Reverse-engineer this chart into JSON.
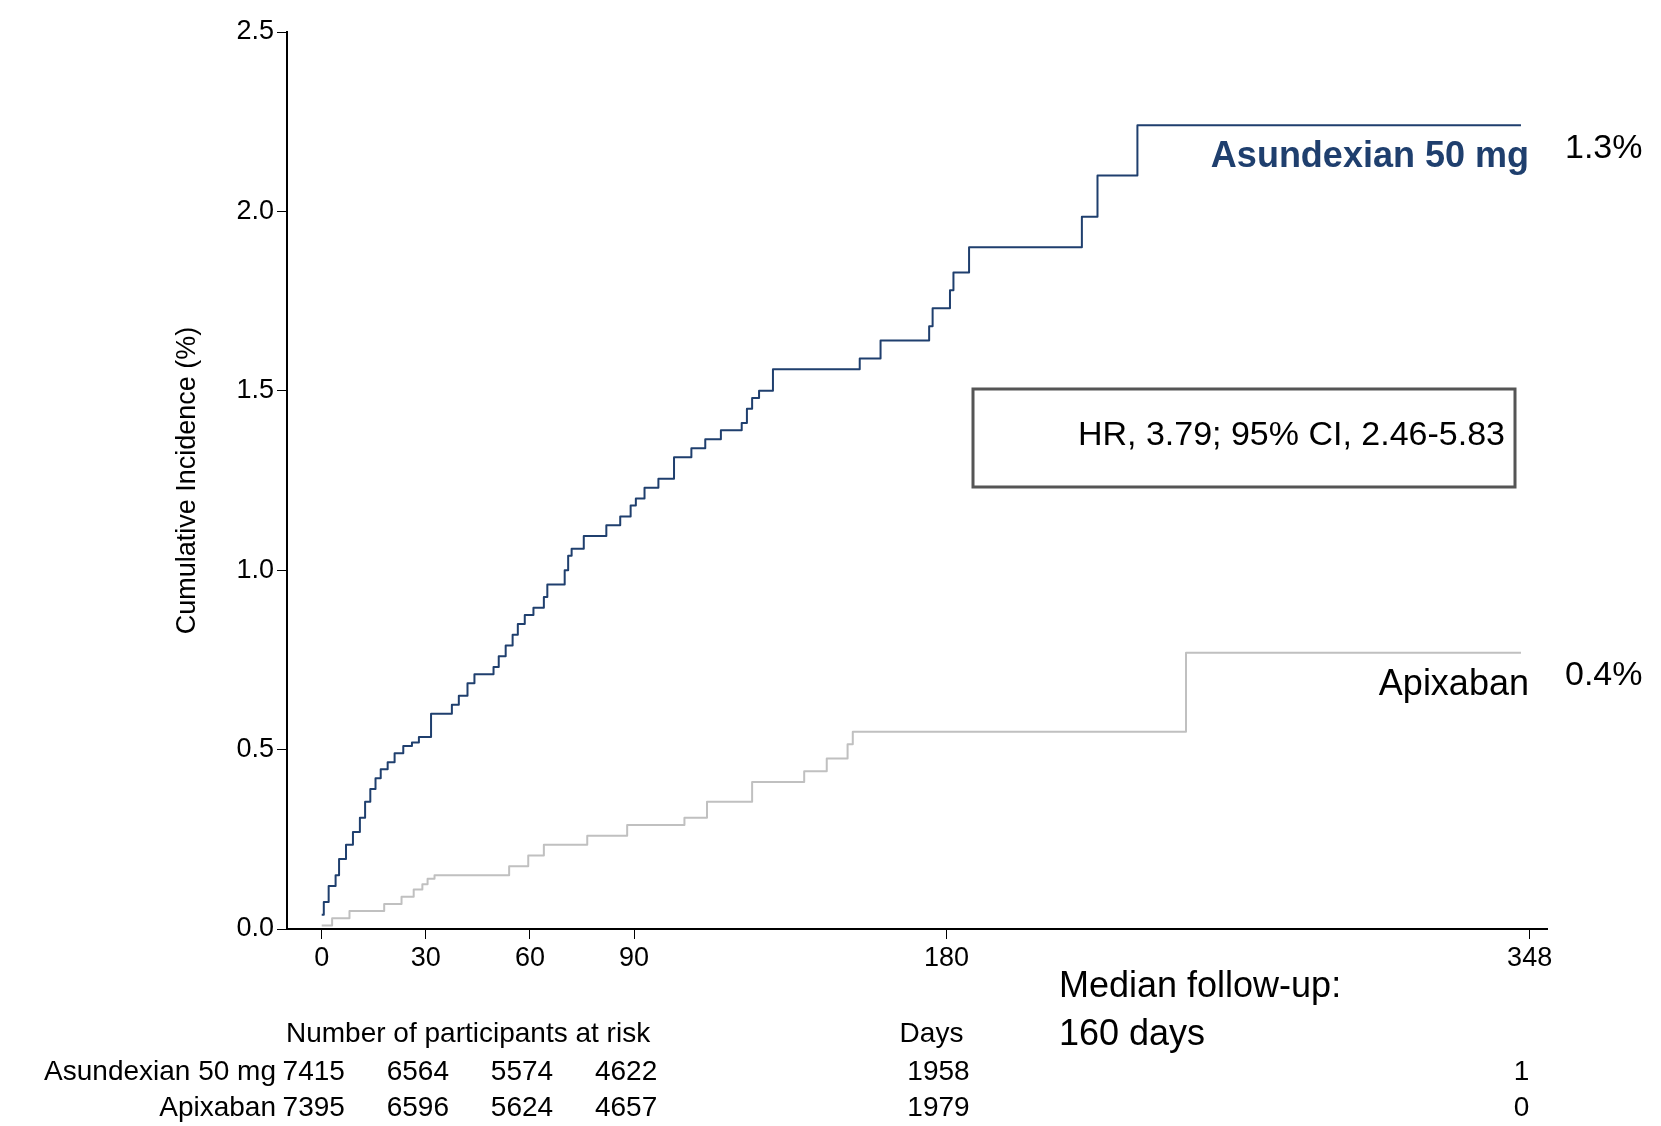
{
  "chart_data": {
    "type": "step",
    "ylabel": "Cumulative Incidence (%)",
    "xlim": [
      -10,
      353
    ],
    "xticks": [
      0,
      30,
      60,
      90,
      180,
      348
    ],
    "ylim": [
      0,
      2.5
    ],
    "yticks": [
      {
        "value": 0,
        "label": "0.0"
      },
      {
        "value": 0.5,
        "label": "0.5"
      },
      {
        "value": 1,
        "label": "1.0"
      },
      {
        "value": 1.5,
        "label": "1.5"
      },
      {
        "value": 2,
        "label": "2.0"
      },
      {
        "value": 2.5,
        "label": "2.5"
      }
    ],
    "grid": false,
    "legend": false,
    "marker": "none",
    "line_style": "solid",
    "series": [
      {
        "name": "Asundexian 50 mg",
        "color": "#1f3f6e",
        "x": [
          0,
          0.6,
          2,
          4,
          5,
          7,
          9,
          11,
          12.5,
          14,
          15.5,
          17,
          19,
          21,
          23.5,
          26,
          28,
          31.5,
          37.5,
          39.5,
          42,
          44,
          49.5,
          51,
          53,
          55,
          56.5,
          58.5,
          61,
          64,
          65,
          70,
          71,
          72,
          75.5,
          82,
          86,
          89,
          90.5,
          93,
          97,
          101.5,
          106.5,
          110.5,
          115,
          121,
          122.5,
          124,
          126,
          130,
          155,
          161,
          175,
          176,
          181,
          182,
          186.5,
          219,
          223.5,
          235,
          345.5
        ],
        "values": [
          0.04,
          0.075,
          0.12,
          0.15,
          0.195,
          0.235,
          0.27,
          0.31,
          0.355,
          0.39,
          0.42,
          0.445,
          0.465,
          0.49,
          0.51,
          0.52,
          0.535,
          0.6,
          0.625,
          0.65,
          0.685,
          0.71,
          0.73,
          0.76,
          0.79,
          0.82,
          0.85,
          0.875,
          0.895,
          0.925,
          0.96,
          1.0,
          1.04,
          1.06,
          1.095,
          1.125,
          1.15,
          1.18,
          1.2,
          1.23,
          1.255,
          1.315,
          1.34,
          1.365,
          1.39,
          1.41,
          1.45,
          1.48,
          1.5,
          1.56,
          1.59,
          1.64,
          1.68,
          1.73,
          1.78,
          1.83,
          1.9,
          1.985,
          2.1,
          2.24,
          2.24
        ]
      },
      {
        "name": "Apixaban",
        "color": "#c0c0c0",
        "x": [
          0,
          3,
          8,
          18,
          23,
          26.5,
          29,
          30.5,
          32.5,
          54,
          59.5,
          64,
          76.5,
          88,
          104.5,
          111,
          124,
          139,
          145.5,
          151.5,
          153,
          249,
          345.5
        ],
        "values": [
          0.01,
          0.03,
          0.05,
          0.07,
          0.09,
          0.11,
          0.125,
          0.14,
          0.15,
          0.175,
          0.205,
          0.235,
          0.26,
          0.29,
          0.31,
          0.355,
          0.41,
          0.44,
          0.475,
          0.515,
          0.55,
          0.77,
          0.77
        ]
      }
    ],
    "annotations": [
      "HR, 3.79; 95% CI, 2.46-5.83",
      "1.3%",
      "0.4%",
      "Median follow-up:",
      "160 days",
      "Number of participants at risk",
      "Days",
      "Asundexian 50 mg",
      "7415",
      "6564",
      "5574",
      "4622",
      "1958",
      "1",
      "Apixaban",
      "7395",
      "6596",
      "5624",
      "4657",
      "1979",
      "0"
    ]
  }
}
